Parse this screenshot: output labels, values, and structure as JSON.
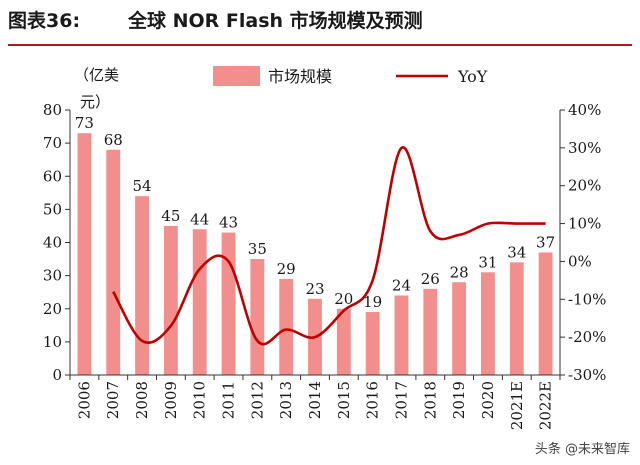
{
  "header": {
    "figure_number": "图表36:",
    "title": "全球 NOR Flash 市场规模及预测"
  },
  "watermark": "头条 @未来智库",
  "colors": {
    "bar": "#f28e8c",
    "line": "#c00000",
    "rule": "#b0171f",
    "axis": "#333333"
  },
  "chart_data": {
    "type": "bar",
    "title": "全球 NOR Flash 市场规模及预测",
    "categories": [
      "2006",
      "2007",
      "2008",
      "2009",
      "2010",
      "2011",
      "2012",
      "2013",
      "2014",
      "2015",
      "2016",
      "2017",
      "2018",
      "2019",
      "2020",
      "2021E",
      "2022E"
    ],
    "series": [
      {
        "name": "市场规模",
        "type": "bar",
        "axis": "left",
        "values": [
          73,
          68,
          54,
          45,
          44,
          43,
          35,
          29,
          23,
          20,
          19,
          24,
          26,
          28,
          31,
          34,
          37
        ]
      },
      {
        "name": "YoY",
        "type": "line",
        "axis": "right",
        "values": [
          null,
          -8,
          -21,
          -17,
          -2,
          0,
          -21,
          -18,
          -20,
          -13,
          -5,
          30,
          8,
          7,
          10,
          10,
          10
        ]
      }
    ],
    "ylabel": "（亿美元）",
    "ylim": [
      0,
      80
    ],
    "yticks": [
      0,
      10,
      20,
      30,
      40,
      50,
      60,
      70,
      80
    ],
    "y2lim": [
      -30,
      40
    ],
    "y2ticks": [
      "-30%",
      "-20%",
      "-10%",
      "0%",
      "10%",
      "20%",
      "30%",
      "40%"
    ],
    "legend": [
      "市场规模",
      "YoY"
    ],
    "legend_position": "top-center",
    "grid": false
  }
}
